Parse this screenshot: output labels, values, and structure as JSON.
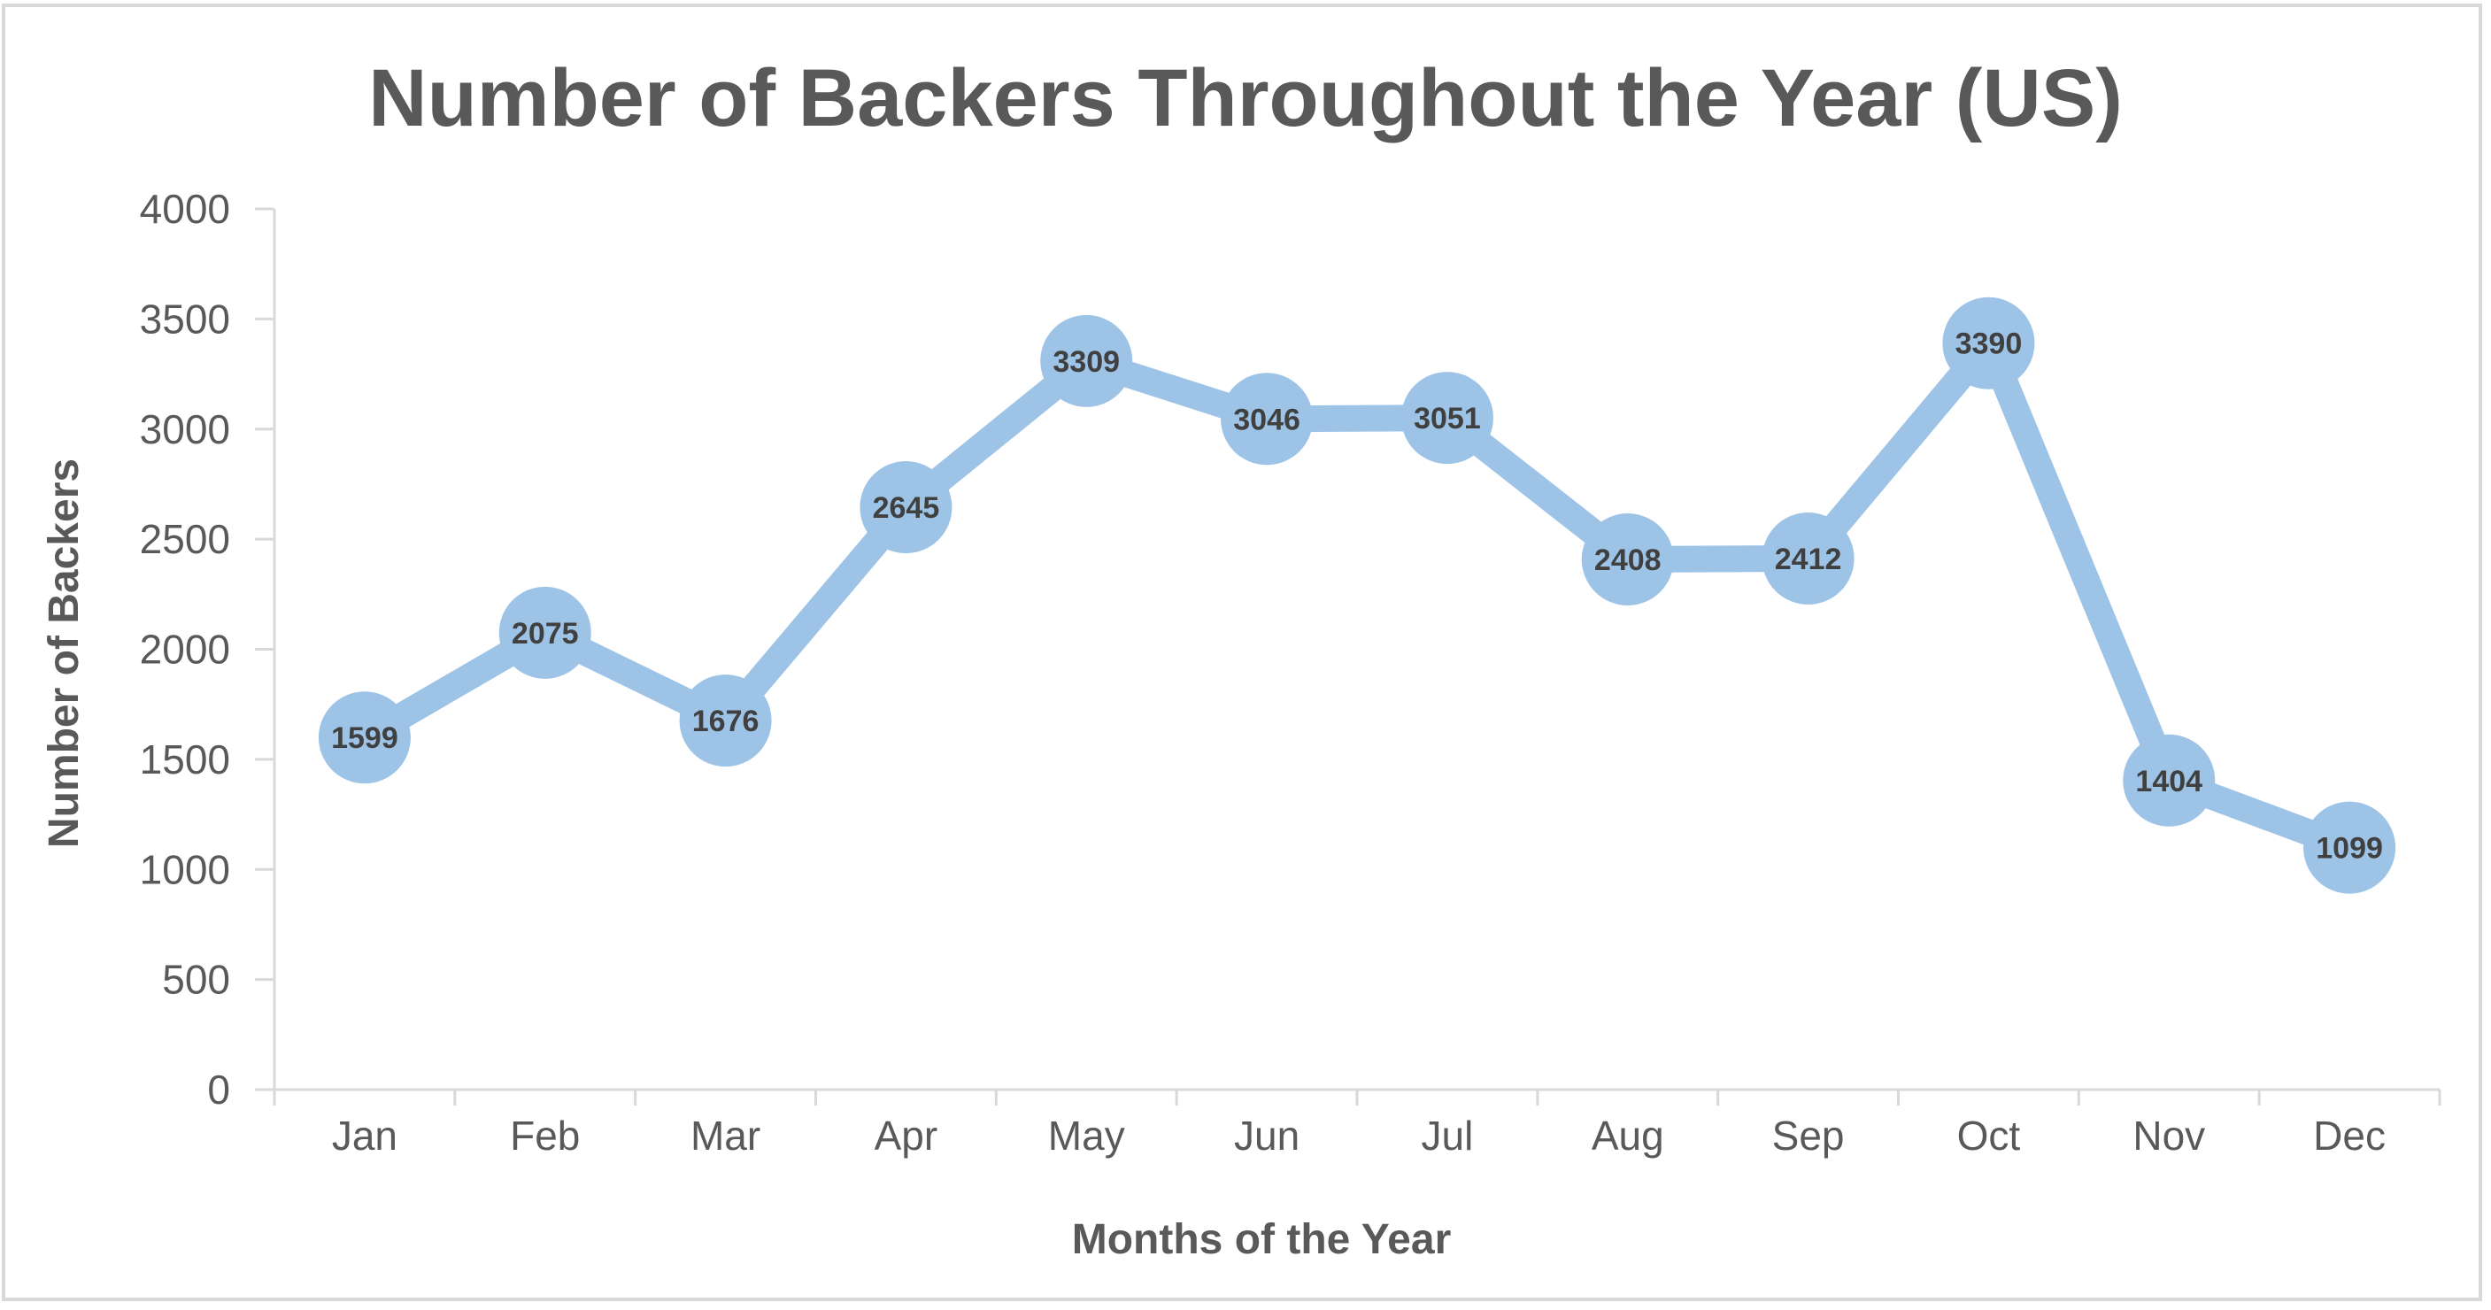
{
  "chart_data": {
    "type": "line",
    "title": "Number of Backers Throughout the Year (US)",
    "xlabel": "Months of the Year",
    "ylabel": "Number of Backers",
    "categories": [
      "Jan",
      "Feb",
      "Mar",
      "Apr",
      "May",
      "Jun",
      "Jul",
      "Aug",
      "Sep",
      "Oct",
      "Nov",
      "Dec"
    ],
    "series": [
      {
        "values": [
          1599,
          2075,
          1676,
          2645,
          3309,
          3046,
          3051,
          2408,
          2412,
          3390,
          1404,
          1099
        ]
      }
    ],
    "ylim": [
      0,
      4000
    ],
    "yticks": [
      0,
      500,
      1000,
      1500,
      2000,
      2500,
      3000,
      3500,
      4000
    ],
    "grid": false,
    "legend": "none",
    "colors": {
      "line": "#9dc3e6",
      "text": "#595959",
      "axis": "#d9d9d9",
      "data_label": "#404040"
    }
  }
}
